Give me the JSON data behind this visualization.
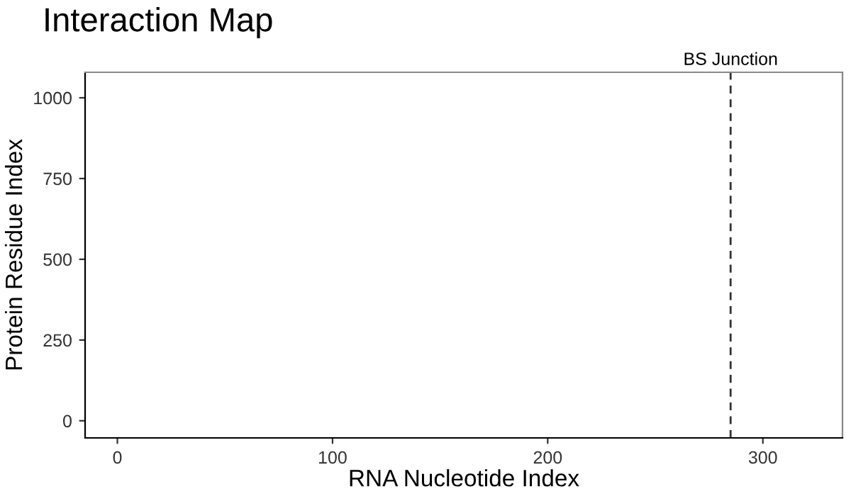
{
  "chart_data": {
    "type": "scatter",
    "title": "Interaction Map",
    "xlabel": "RNA Nucleotide Index",
    "ylabel": "Protein Residue Index",
    "xlim": [
      -15,
      337
    ],
    "xticks": [
      0,
      100,
      200,
      300
    ],
    "ylim": [
      -53,
      1079
    ],
    "yticks": [
      0,
      250,
      500,
      750,
      1000
    ],
    "ref_lines": [
      {
        "axis": "x",
        "value": 285,
        "label": "BS Junction",
        "color": "#333333",
        "line_style": "dashed"
      }
    ],
    "grid": false
  }
}
